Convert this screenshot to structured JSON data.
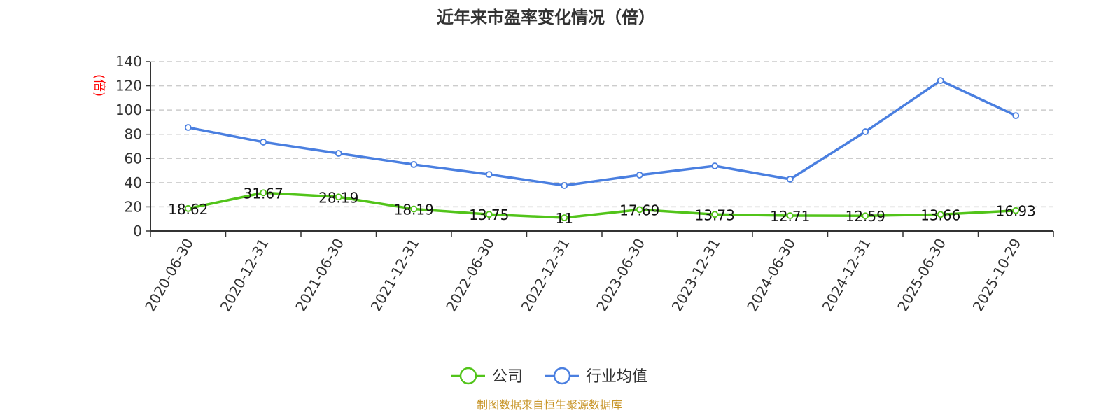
{
  "chart_data": {
    "type": "line",
    "title": "近年来市盈率变化情况（倍）",
    "ylabel": "(倍)",
    "xlabel": "",
    "ylim": [
      0,
      140
    ],
    "yticks": [
      0,
      20,
      40,
      60,
      80,
      100,
      120,
      140
    ],
    "grid": true,
    "legend_position": "bottom-center",
    "categories": [
      "2020-06-30",
      "2020-12-31",
      "2021-06-30",
      "2021-12-31",
      "2022-06-30",
      "2022-12-31",
      "2023-06-30",
      "2023-12-31",
      "2024-06-30",
      "2024-12-31",
      "2025-06-30",
      "2025-10-29"
    ],
    "series": [
      {
        "name": "公司",
        "color": "#52c41a",
        "show_labels": true,
        "values": [
          18.62,
          31.67,
          28.19,
          18.19,
          13.75,
          11,
          17.69,
          13.73,
          12.71,
          12.59,
          13.66,
          16.93
        ]
      },
      {
        "name": "行业均值",
        "color": "#4a7fe0",
        "show_labels": false,
        "values": [
          85.6,
          73.5,
          64.2,
          55.0,
          46.8,
          37.6,
          46.3,
          53.8,
          42.8,
          82.1,
          124.3,
          95.4
        ]
      }
    ],
    "source": "制图数据来自恒生聚源数据库"
  },
  "colors": {
    "axis": "#333333",
    "grid": "#cccccc",
    "ylabel": "#ff0000",
    "source": "#c8962a"
  }
}
